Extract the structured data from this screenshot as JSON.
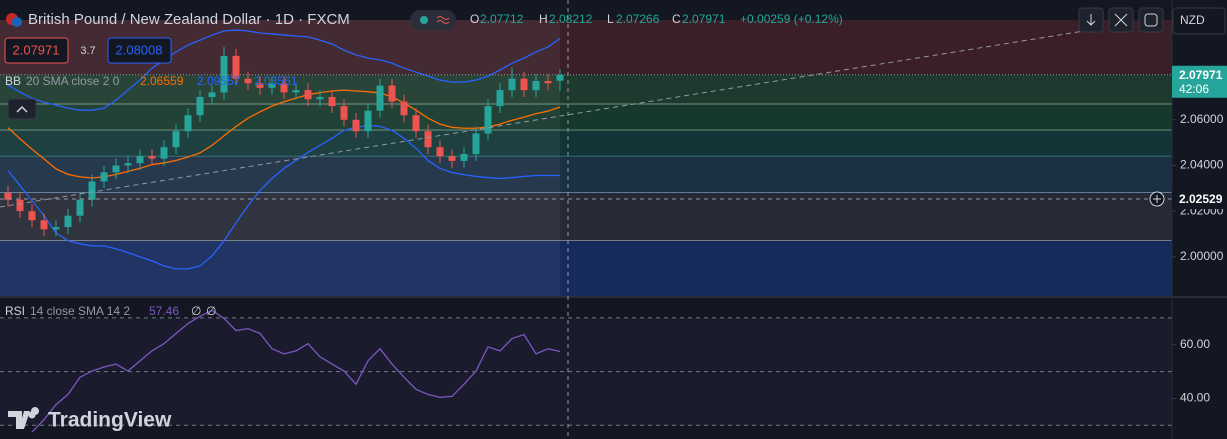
{
  "header": {
    "symbol": "British Pound / New Zealand Dollar · 1D · FXCM",
    "ohlc_labels": [
      "O",
      "H",
      "L",
      "C"
    ],
    "change": "+0.00259 (+0.12%)",
    "sell": "2.07971",
    "spread": "3.7",
    "buy": "2.08008",
    "currency": "NZD",
    "countdown": "42:06",
    "logo": "TradingView"
  },
  "chart_data": [
    {
      "type": "candlestick",
      "open": [
        2.028,
        2.025,
        2.02,
        2.016,
        2.012,
        2.013,
        2.018,
        2.025,
        2.033,
        2.037,
        2.04,
        2.041,
        2.044,
        2.043,
        2.048,
        2.055,
        2.062,
        2.07,
        2.072,
        2.088,
        2.078,
        2.076,
        2.074,
        2.076,
        2.072,
        2.073,
        2.069,
        2.07,
        2.066,
        2.06,
        2.055,
        2.064,
        2.075,
        2.068,
        2.062,
        2.055,
        2.048,
        2.044,
        2.042,
        2.045,
        2.054,
        2.066,
        2.073,
        2.078,
        2.073,
        2.077,
        2.07712
      ],
      "high": [
        2.031,
        2.028,
        2.023,
        2.019,
        2.016,
        2.021,
        2.028,
        2.036,
        2.04,
        2.043,
        2.044,
        2.047,
        2.047,
        2.051,
        2.058,
        2.065,
        2.073,
        2.075,
        2.092,
        2.091,
        2.081,
        2.079,
        2.079,
        2.079,
        2.076,
        2.076,
        2.073,
        2.073,
        2.069,
        2.063,
        2.067,
        2.078,
        2.078,
        2.071,
        2.065,
        2.058,
        2.051,
        2.047,
        2.048,
        2.057,
        2.069,
        2.076,
        2.083,
        2.081,
        2.08,
        2.08,
        2.08212
      ],
      "low": [
        2.022,
        2.017,
        2.013,
        2.009,
        2.009,
        2.01,
        2.015,
        2.022,
        2.03,
        2.034,
        2.037,
        2.038,
        2.04,
        2.04,
        2.045,
        2.052,
        2.059,
        2.067,
        2.069,
        2.075,
        2.073,
        2.071,
        2.071,
        2.069,
        2.069,
        2.066,
        2.066,
        2.063,
        2.057,
        2.052,
        2.052,
        2.061,
        2.065,
        2.059,
        2.052,
        2.045,
        2.041,
        2.039,
        2.039,
        2.042,
        2.051,
        2.063,
        2.07,
        2.07,
        2.07,
        2.073,
        2.07266
      ],
      "close": [
        2.025,
        2.02,
        2.016,
        2.012,
        2.013,
        2.018,
        2.025,
        2.033,
        2.037,
        2.04,
        2.041,
        2.044,
        2.043,
        2.048,
        2.055,
        2.062,
        2.07,
        2.072,
        2.088,
        2.078,
        2.076,
        2.074,
        2.076,
        2.072,
        2.073,
        2.069,
        2.07,
        2.066,
        2.06,
        2.055,
        2.064,
        2.075,
        2.068,
        2.062,
        2.055,
        2.048,
        2.044,
        2.042,
        2.045,
        2.054,
        2.066,
        2.073,
        2.078,
        2.073,
        2.077,
        2.076,
        2.07971
      ],
      "up_color": "#26a69a",
      "down_color": "#ef5350",
      "bands": {
        "upper": [
          2.0752,
          2.0721,
          2.0695,
          2.0677,
          2.0664,
          2.0651,
          2.0642,
          2.0642,
          2.0651,
          2.0686,
          2.073,
          2.0774,
          2.0826,
          2.0862,
          2.0897,
          2.0927,
          2.0949,
          2.0971,
          2.0989,
          2.0993,
          2.0989,
          2.098,
          2.0976,
          2.0971,
          2.0967,
          2.0963,
          2.0949,
          2.0932,
          2.0905,
          2.0884,
          2.087,
          2.0862,
          2.0848,
          2.0826,
          2.0809,
          2.0791,
          2.0774,
          2.0765,
          2.0765,
          2.0774,
          2.0791,
          2.0818,
          2.0848,
          2.087,
          2.0897,
          2.0919,
          2.09557
        ],
        "basis": [
          2.0565,
          2.0517,
          2.0471,
          2.0429,
          2.0385,
          2.0361,
          2.035,
          2.0345,
          2.035,
          2.0361,
          2.0374,
          2.0387,
          2.0404,
          2.0411,
          2.0422,
          2.0437,
          2.0455,
          2.0488,
          2.053,
          2.0571,
          2.0607,
          2.0635,
          2.066,
          2.0679,
          2.0695,
          2.071,
          2.0719,
          2.0726,
          2.073,
          2.0726,
          2.0723,
          2.0717,
          2.0701,
          2.0673,
          2.0642,
          2.0607,
          2.0581,
          2.0567,
          2.0563,
          2.0563,
          2.0569,
          2.0581,
          2.0598,
          2.0611,
          2.0627,
          2.0638,
          2.06559
        ],
        "lower": [
          2.0378,
          2.0312,
          2.0246,
          2.018,
          2.0105,
          2.007,
          2.0057,
          2.0048,
          2.0048,
          2.0035,
          2.0018,
          2.0,
          1.9982,
          1.996,
          1.9947,
          1.9947,
          1.996,
          2.0004,
          2.007,
          2.0149,
          2.0224,
          2.029,
          2.0343,
          2.0387,
          2.0422,
          2.0457,
          2.0488,
          2.0519,
          2.0554,
          2.0567,
          2.0576,
          2.0571,
          2.0554,
          2.0519,
          2.0475,
          2.0422,
          2.0387,
          2.0369,
          2.036,
          2.0352,
          2.0347,
          2.0343,
          2.0347,
          2.0352,
          2.0356,
          2.0356,
          2.03561
        ],
        "colors": {
          "upper": "#2962ff",
          "basis": "#ff6d00",
          "lower": "#2962ff"
        }
      },
      "legend": {
        "label": "BB",
        "params": "20 SMA close 2 0"
      },
      "zones": [
        {
          "from": 2.0797,
          "to": 2.1037,
          "color": "#3a1f28"
        },
        {
          "from": 2.0668,
          "to": 2.0797,
          "color": "#1e3a2f",
          "line": "#c8e6c9"
        },
        {
          "from": 2.0554,
          "to": 2.0668,
          "color": "#17382d",
          "line": "#a5d6a7"
        },
        {
          "from": 2.044,
          "to": 2.0554,
          "color": "#123637",
          "line": "#4db6ac"
        },
        {
          "from": 2.0281,
          "to": 2.044,
          "color": "#1c3044",
          "line": "#90caf9"
        },
        {
          "from": 2.007,
          "to": 2.0281,
          "color": "#252a35",
          "line": "#e0e0e0"
        },
        {
          "from": 1.9824,
          "to": 2.007,
          "color": "#172a5c"
        }
      ],
      "crosshair": 2.02529,
      "ylim": [
        1.9824,
        2.1037
      ],
      "yticks": [
        {
          "value": 2.0,
          "label": "2.00000"
        },
        {
          "value": 2.02,
          "label": "2.02000"
        },
        {
          "value": 2.04,
          "label": "2.04000"
        },
        {
          "value": 2.06,
          "label": "2.06000"
        }
      ]
    },
    {
      "type": "line",
      "values": [
        null,
        null,
        27.5,
        32.1,
        37.7,
        41.5,
        47.9,
        50.2,
        51.7,
        52.8,
        50.2,
        54.0,
        57.7,
        60.4,
        64.2,
        67.9,
        70.6,
        72.8,
        69.8,
        65.3,
        66.0,
        64.2,
        58.5,
        56.6,
        57.7,
        60.4,
        55.5,
        52.8,
        50.2,
        45.3,
        54.0,
        58.5,
        52.8,
        47.9,
        43.4,
        41.5,
        40.4,
        40.8,
        45.3,
        50.2,
        59.2,
        57.7,
        62.3,
        63.8,
        56.6,
        58.5,
        57.46
      ],
      "color": "#7e57c2",
      "legend": {
        "label": "RSI",
        "params": "14 close SMA 14 2",
        "extra": [
          "∅",
          "∅"
        ]
      },
      "hlines": [
        70,
        50,
        30
      ],
      "ylim": [
        24.9,
        77.4
      ],
      "yticks": [
        {
          "value": 60,
          "label": "60.00"
        },
        {
          "value": 40,
          "label": "40.00"
        }
      ]
    }
  ]
}
